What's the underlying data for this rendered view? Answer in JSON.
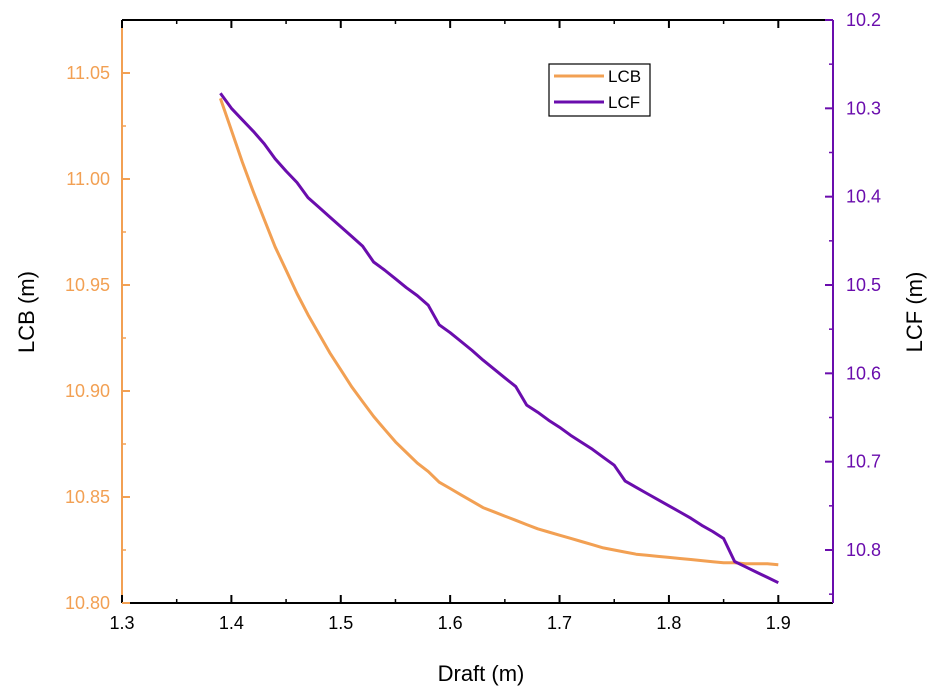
{
  "chart_data": {
    "type": "line",
    "xlabel": "Draft (m)",
    "ylabel_left": "LCB (m)",
    "ylabel_right": "LCF (m)",
    "x_range": [
      1.3,
      1.95
    ],
    "x_ticks": [
      "1.3",
      "1.4",
      "1.5",
      "1.6",
      "1.7",
      "1.8",
      "1.9"
    ],
    "y_left_range": [
      10.8,
      11.075
    ],
    "y_left_ticks": [
      "10.80",
      "10.85",
      "10.90",
      "10.95",
      "11.00",
      "11.05"
    ],
    "y_right_range": [
      10.2,
      10.86
    ],
    "y_right_reversed": true,
    "y_right_ticks": [
      "10.2",
      "10.3",
      "10.4",
      "10.5",
      "10.6",
      "10.7",
      "10.8"
    ],
    "legend_position": "top-right",
    "colors": {
      "lcb": "#F2A053",
      "lcf": "#6A0DAD",
      "left_axis": "#F2A053",
      "right_axis": "#6A0DAD"
    },
    "series": [
      {
        "name": "LCB",
        "axis": "left",
        "x": [
          1.39,
          1.4,
          1.41,
          1.42,
          1.43,
          1.44,
          1.45,
          1.46,
          1.47,
          1.48,
          1.49,
          1.5,
          1.51,
          1.52,
          1.53,
          1.54,
          1.55,
          1.56,
          1.57,
          1.58,
          1.59,
          1.6,
          1.61,
          1.62,
          1.63,
          1.64,
          1.65,
          1.66,
          1.67,
          1.68,
          1.69,
          1.7,
          1.71,
          1.72,
          1.73,
          1.74,
          1.75,
          1.76,
          1.77,
          1.78,
          1.79,
          1.8,
          1.81,
          1.82,
          1.83,
          1.84,
          1.85,
          1.86,
          1.87,
          1.88,
          1.89,
          1.9
        ],
        "values": [
          11.038,
          11.023,
          11.008,
          10.994,
          10.981,
          10.968,
          10.957,
          10.946,
          10.936,
          10.927,
          10.918,
          10.91,
          10.902,
          10.895,
          10.888,
          10.882,
          10.876,
          10.871,
          10.866,
          10.862,
          10.857,
          10.854,
          10.851,
          10.848,
          10.845,
          10.843,
          10.841,
          10.839,
          10.837,
          10.835,
          10.8335,
          10.832,
          10.8305,
          10.829,
          10.8275,
          10.826,
          10.825,
          10.824,
          10.823,
          10.8225,
          10.822,
          10.8215,
          10.821,
          10.8205,
          10.82,
          10.8195,
          10.819,
          10.819,
          10.8185,
          10.8185,
          10.8185,
          10.818
        ]
      },
      {
        "name": "LCF",
        "axis": "right",
        "x": [
          1.39,
          1.4,
          1.41,
          1.42,
          1.43,
          1.44,
          1.45,
          1.46,
          1.47,
          1.48,
          1.49,
          1.5,
          1.51,
          1.52,
          1.53,
          1.54,
          1.55,
          1.56,
          1.57,
          1.58,
          1.59,
          1.6,
          1.61,
          1.62,
          1.63,
          1.64,
          1.65,
          1.66,
          1.67,
          1.68,
          1.69,
          1.7,
          1.71,
          1.72,
          1.73,
          1.74,
          1.75,
          1.76,
          1.77,
          1.78,
          1.79,
          1.8,
          1.81,
          1.82,
          1.83,
          1.84,
          1.85,
          1.86,
          1.87,
          1.88,
          1.89,
          1.9
        ],
        "values": [
          10.283,
          10.3,
          10.313,
          10.326,
          10.34,
          10.357,
          10.371,
          10.384,
          10.401,
          10.412,
          10.423,
          10.434,
          10.445,
          10.456,
          10.474,
          10.483,
          10.493,
          10.503,
          10.512,
          10.523,
          10.545,
          10.554,
          10.564,
          10.574,
          10.585,
          10.595,
          10.605,
          10.615,
          10.636,
          10.644,
          10.653,
          10.661,
          10.67,
          10.678,
          10.686,
          10.695,
          10.704,
          10.722,
          10.729,
          10.736,
          10.743,
          10.75,
          10.757,
          10.764,
          10.772,
          10.779,
          10.787,
          10.813,
          10.819,
          10.825,
          10.831,
          10.837
        ]
      }
    ]
  }
}
